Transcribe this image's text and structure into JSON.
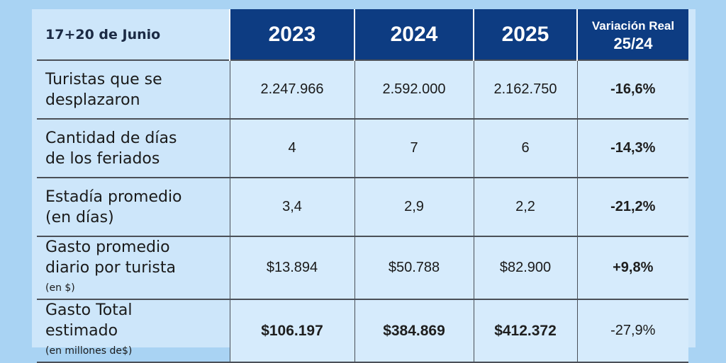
{
  "table": {
    "corner": "17+20 de Junio",
    "headers": {
      "y2023": "2023",
      "y2024": "2024",
      "y2025": "2025",
      "var_line1": "Variación Real",
      "var_line2": "25/24"
    },
    "rows": [
      {
        "label_line1": "Turistas que se",
        "label_line2": "desplazaron",
        "unit": "",
        "v2023": "2.247.966",
        "v2024": "2.592.000",
        "v2025": "2.162.750",
        "variation": "-16,6%"
      },
      {
        "label_line1": "Cantidad de días",
        "label_line2": "de los feriados",
        "unit": "",
        "v2023": "4",
        "v2024": "7",
        "v2025": "6",
        "variation": "-14,3%"
      },
      {
        "label_line1": "Estadía promedio",
        "label_line2": "(en días)",
        "unit": "",
        "v2023": "3,4",
        "v2024": "2,9",
        "v2025": "2,2",
        "variation": "-21,2%"
      },
      {
        "label_line1": "Gasto promedio",
        "label_line2": "diario por turista",
        "unit": "(en $)",
        "v2023": "$13.894",
        "v2024": "$50.788",
        "v2025": "$82.900",
        "variation": "+9,8%"
      },
      {
        "label_line1": "Gasto Total",
        "label_line2": "estimado",
        "unit": "(en millones de$)",
        "v2023": "$106.197",
        "v2024": "$384.869",
        "v2025": "$412.372",
        "variation": "-27,9%"
      }
    ]
  },
  "colors": {
    "background": "#a9d3f3",
    "header": "#0d3c82",
    "cell": "#d6ebfc"
  }
}
